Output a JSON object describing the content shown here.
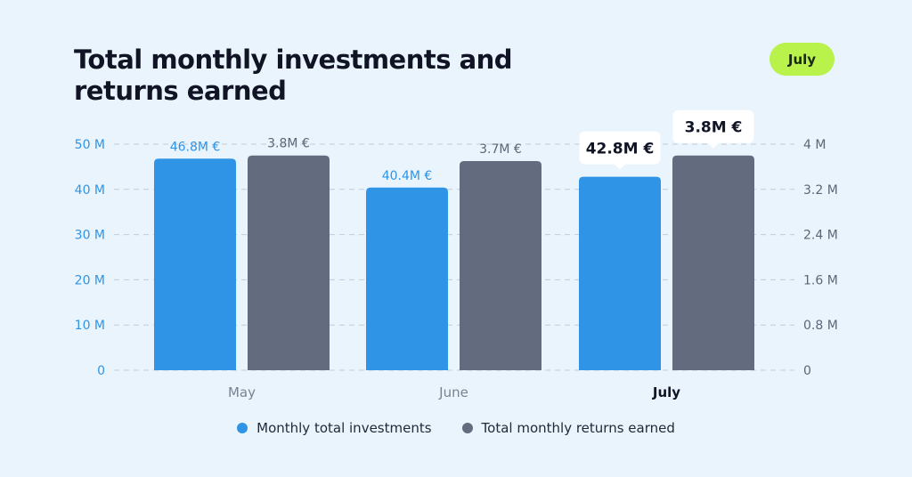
{
  "title": "Total monthly investments and returns earned",
  "selected_month_button": "July",
  "colors": {
    "background": "#eaf4fd",
    "investments": "#2f94e6",
    "returns": "#636b7e",
    "pill": "#b8f24a",
    "left_axis_text": "#2f94e6",
    "right_axis_text": "#5d6677",
    "grid": "#c2ccd8"
  },
  "chart_data": {
    "type": "bar",
    "categories": [
      "May",
      "June",
      "July"
    ],
    "highlighted_category": "July",
    "series": [
      {
        "name": "Monthly total investments",
        "axis": "left",
        "values": [
          46.8,
          40.4,
          42.8
        ],
        "labels": [
          "46.8M €",
          "40.4M €",
          "42.8M €"
        ]
      },
      {
        "name": "Total monthly returns earned",
        "axis": "right",
        "values": [
          3.8,
          3.7,
          3.8
        ],
        "labels": [
          "3.8M €",
          "3.7M €",
          "3.8M €"
        ]
      }
    ],
    "left_axis": {
      "ylim": [
        0,
        50
      ],
      "ticks": [
        0,
        10,
        20,
        30,
        40,
        50
      ],
      "tick_labels": [
        "0",
        "10 M",
        "20 M",
        "30 M",
        "40 M",
        "50 M"
      ]
    },
    "right_axis": {
      "ylim": [
        0,
        4
      ],
      "ticks": [
        0,
        0.8,
        1.6,
        2.4,
        3.2,
        4
      ],
      "tick_labels": [
        "0",
        "0.8 M",
        "1.6 M",
        "2.4 M",
        "3.2 M",
        "4 M"
      ]
    },
    "grid": true,
    "legend_position": "bottom"
  }
}
